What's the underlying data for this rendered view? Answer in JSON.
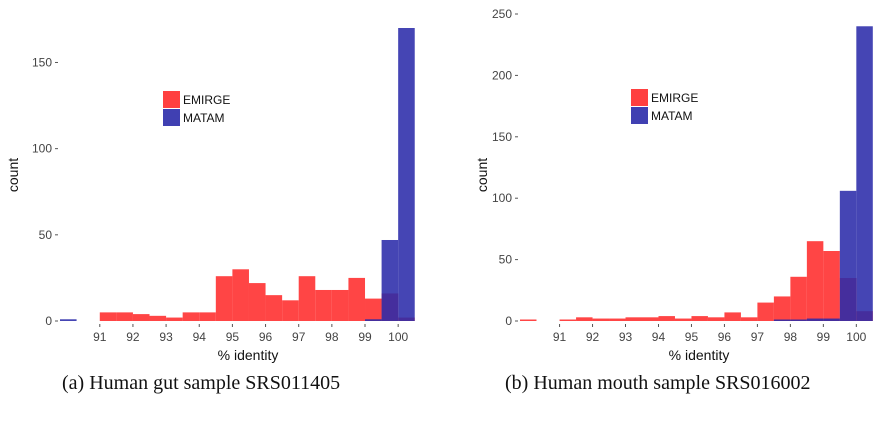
{
  "colors": {
    "EMIRGE": "#ff2b2b",
    "MATAM": "#2b2baa",
    "axis_text": "#444444"
  },
  "legend_placement": "upper-middle",
  "grid": false,
  "chart_data": [
    {
      "type": "histogram",
      "xlabel": "% identity",
      "ylabel": "count",
      "xlim": [
        89.8,
        100.9
      ],
      "ylim": [
        0,
        170
      ],
      "x_ticks": [
        91,
        92,
        93,
        94,
        95,
        96,
        97,
        98,
        99,
        100
      ],
      "y_ticks": [
        0,
        50,
        100,
        150
      ],
      "caption": "(a) Human gut sample SRS011405",
      "series": [
        {
          "name": "EMIRGE",
          "bins": [
            {
              "x0": 90.5,
              "x1": 91.0,
              "count": 0
            },
            {
              "x0": 91.0,
              "x1": 91.5,
              "count": 5
            },
            {
              "x0": 91.5,
              "x1": 92.0,
              "count": 5
            },
            {
              "x0": 92.0,
              "x1": 92.5,
              "count": 4
            },
            {
              "x0": 92.5,
              "x1": 93.0,
              "count": 3
            },
            {
              "x0": 93.0,
              "x1": 93.5,
              "count": 2
            },
            {
              "x0": 93.5,
              "x1": 94.0,
              "count": 5
            },
            {
              "x0": 94.0,
              "x1": 94.5,
              "count": 5
            },
            {
              "x0": 94.5,
              "x1": 95.0,
              "count": 26
            },
            {
              "x0": 95.0,
              "x1": 95.5,
              "count": 30
            },
            {
              "x0": 95.5,
              "x1": 96.0,
              "count": 22
            },
            {
              "x0": 96.0,
              "x1": 96.5,
              "count": 15
            },
            {
              "x0": 96.5,
              "x1": 97.0,
              "count": 12
            },
            {
              "x0": 97.0,
              "x1": 97.5,
              "count": 26
            },
            {
              "x0": 97.5,
              "x1": 98.0,
              "count": 18
            },
            {
              "x0": 98.0,
              "x1": 98.5,
              "count": 18
            },
            {
              "x0": 98.5,
              "x1": 99.0,
              "count": 25
            },
            {
              "x0": 99.0,
              "x1": 99.5,
              "count": 13
            },
            {
              "x0": 99.5,
              "x1": 100.0,
              "count": 16
            },
            {
              "x0": 100.0,
              "x1": 100.5,
              "count": 2
            }
          ]
        },
        {
          "name": "MATAM",
          "bins": [
            {
              "x0": 89.8,
              "x1": 90.3,
              "count": 1
            },
            {
              "x0": 99.0,
              "x1": 99.5,
              "count": 1
            },
            {
              "x0": 99.5,
              "x1": 100.0,
              "count": 47
            },
            {
              "x0": 100.0,
              "x1": 100.5,
              "count": 170
            }
          ]
        }
      ]
    },
    {
      "type": "histogram",
      "xlabel": "% identity",
      "ylabel": "count",
      "xlim": [
        89.8,
        100.9
      ],
      "ylim": [
        0,
        250
      ],
      "x_ticks": [
        91,
        92,
        93,
        94,
        95,
        96,
        97,
        98,
        99,
        100
      ],
      "y_ticks": [
        0,
        50,
        100,
        150,
        200,
        250
      ],
      "caption": "(b) Human mouth sample SRS016002",
      "series": [
        {
          "name": "EMIRGE",
          "bins": [
            {
              "x0": 89.8,
              "x1": 90.3,
              "count": 1
            },
            {
              "x0": 91.0,
              "x1": 91.5,
              "count": 1
            },
            {
              "x0": 91.5,
              "x1": 92.0,
              "count": 3
            },
            {
              "x0": 92.0,
              "x1": 92.5,
              "count": 2
            },
            {
              "x0": 92.5,
              "x1": 93.0,
              "count": 2
            },
            {
              "x0": 93.0,
              "x1": 93.5,
              "count": 3
            },
            {
              "x0": 93.5,
              "x1": 94.0,
              "count": 3
            },
            {
              "x0": 94.0,
              "x1": 94.5,
              "count": 4
            },
            {
              "x0": 94.5,
              "x1": 95.0,
              "count": 2
            },
            {
              "x0": 95.0,
              "x1": 95.5,
              "count": 4
            },
            {
              "x0": 95.5,
              "x1": 96.0,
              "count": 3
            },
            {
              "x0": 96.0,
              "x1": 96.5,
              "count": 7
            },
            {
              "x0": 96.5,
              "x1": 97.0,
              "count": 3
            },
            {
              "x0": 97.0,
              "x1": 97.5,
              "count": 15
            },
            {
              "x0": 97.5,
              "x1": 98.0,
              "count": 20
            },
            {
              "x0": 98.0,
              "x1": 98.5,
              "count": 36
            },
            {
              "x0": 98.5,
              "x1": 99.0,
              "count": 65
            },
            {
              "x0": 99.0,
              "x1": 99.5,
              "count": 57
            },
            {
              "x0": 99.5,
              "x1": 100.0,
              "count": 35
            },
            {
              "x0": 100.0,
              "x1": 100.5,
              "count": 8
            }
          ]
        },
        {
          "name": "MATAM",
          "bins": [
            {
              "x0": 97.5,
              "x1": 98.0,
              "count": 1
            },
            {
              "x0": 98.0,
              "x1": 98.5,
              "count": 1
            },
            {
              "x0": 98.5,
              "x1": 99.0,
              "count": 2
            },
            {
              "x0": 99.0,
              "x1": 99.5,
              "count": 2
            },
            {
              "x0": 99.5,
              "x1": 100.0,
              "count": 106
            },
            {
              "x0": 100.0,
              "x1": 100.5,
              "count": 240
            }
          ]
        }
      ]
    }
  ]
}
